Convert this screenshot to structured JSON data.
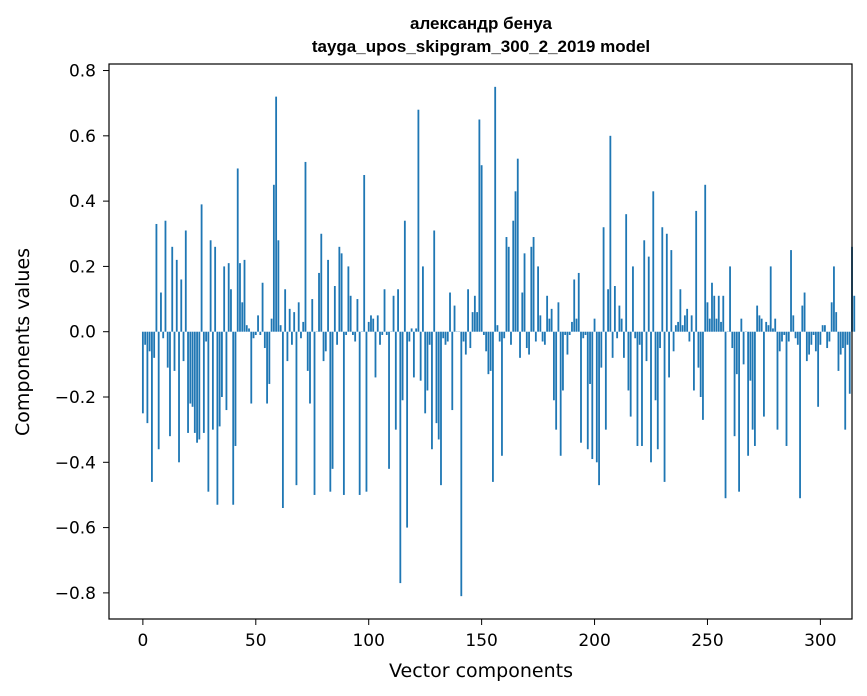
{
  "chart_data": {
    "type": "bar",
    "title": "александр бенуа",
    "subtitle": "tayga_upos_skipgram_300_2_2019 model",
    "xlabel": "Vector components",
    "ylabel": "Components values",
    "xlim": [
      -15,
      314
    ],
    "ylim": [
      -0.88,
      0.82
    ],
    "x_ticks": [
      0,
      50,
      100,
      150,
      200,
      250,
      300
    ],
    "x_tick_labels": [
      "0",
      "50",
      "100",
      "150",
      "200",
      "250",
      "300"
    ],
    "y_ticks": [
      -0.8,
      -0.6,
      -0.4,
      -0.2,
      0.0,
      0.2,
      0.4,
      0.6,
      0.8
    ],
    "y_tick_labels": [
      "−0.8",
      "−0.6",
      "−0.4",
      "−0.2",
      "0.0",
      "0.2",
      "0.4",
      "0.6",
      "0.8"
    ],
    "bar_color": "#1f77b4",
    "grid": false,
    "values": [
      -0.25,
      -0.04,
      -0.28,
      -0.06,
      -0.46,
      -0.08,
      0.33,
      -0.36,
      0.12,
      -0.02,
      0.34,
      -0.11,
      -0.32,
      0.26,
      -0.12,
      0.22,
      -0.4,
      0.16,
      -0.09,
      0.31,
      -0.31,
      -0.22,
      -0.23,
      -0.31,
      -0.34,
      -0.33,
      0.39,
      -0.31,
      -0.03,
      -0.49,
      0.28,
      -0.3,
      0.26,
      -0.53,
      -0.29,
      -0.2,
      0.2,
      -0.24,
      0.21,
      0.13,
      -0.53,
      -0.35,
      0.5,
      0.21,
      0.09,
      0.22,
      0.02,
      0.01,
      -0.22,
      -0.02,
      -0.01,
      0.05,
      -0.01,
      0.15,
      -0.05,
      -0.22,
      -0.16,
      0.04,
      0.45,
      0.72,
      0.28,
      0.02,
      -0.54,
      0.13,
      -0.09,
      0.07,
      -0.04,
      0.06,
      -0.47,
      0.09,
      -0.02,
      0.03,
      0.52,
      -0.12,
      -0.22,
      0.1,
      -0.5,
      0.0,
      0.18,
      0.3,
      -0.09,
      -0.06,
      0.22,
      -0.49,
      -0.42,
      0.14,
      -0.04,
      0.26,
      0.24,
      -0.5,
      -0.01,
      0.2,
      0.11,
      -0.01,
      -0.03,
      0.1,
      -0.5,
      0.0,
      0.48,
      -0.49,
      0.03,
      0.05,
      0.04,
      -0.14,
      0.05,
      -0.04,
      -0.01,
      0.13,
      -0.01,
      -0.42,
      0.0,
      0.11,
      -0.3,
      0.13,
      -0.77,
      -0.21,
      0.34,
      -0.6,
      -0.03,
      0.01,
      -0.14,
      0.01,
      0.68,
      -0.15,
      0.2,
      -0.25,
      -0.18,
      -0.04,
      -0.36,
      0.31,
      -0.28,
      -0.33,
      -0.47,
      -0.02,
      -0.04,
      -0.03,
      0.12,
      -0.24,
      0.08,
      0.0,
      0.0,
      -0.81,
      -0.03,
      -0.07,
      0.13,
      -0.05,
      0.06,
      0.11,
      0.06,
      0.65,
      0.51,
      -0.01,
      -0.06,
      -0.13,
      -0.12,
      -0.46,
      0.75,
      0.02,
      -0.03,
      -0.38,
      -0.02,
      0.29,
      0.26,
      -0.04,
      0.34,
      0.43,
      0.53,
      -0.08,
      0.12,
      0.24,
      -0.05,
      -0.07,
      0.26,
      0.29,
      -0.03,
      0.2,
      0.05,
      -0.03,
      -0.04,
      0.11,
      0.04,
      0.07,
      -0.21,
      -0.3,
      0.09,
      -0.38,
      -0.18,
      -0.01,
      -0.07,
      -0.01,
      0.03,
      0.16,
      0.04,
      0.18,
      -0.34,
      -0.02,
      -0.01,
      -0.36,
      -0.16,
      -0.39,
      0.04,
      -0.4,
      -0.47,
      -0.11,
      0.32,
      -0.3,
      0.13,
      0.6,
      -0.08,
      0.14,
      -0.02,
      0.08,
      0.04,
      -0.08,
      0.36,
      -0.18,
      -0.26,
      0.2,
      -0.02,
      -0.35,
      -0.04,
      -0.35,
      0.28,
      -0.09,
      0.23,
      -0.4,
      0.43,
      -0.21,
      -0.36,
      -0.05,
      0.32,
      -0.46,
      0.3,
      -0.14,
      0.25,
      -0.06,
      0.02,
      0.03,
      0.13,
      0.02,
      0.05,
      0.07,
      -0.03,
      0.05,
      -0.18,
      0.37,
      -0.11,
      -0.2,
      -0.27,
      0.45,
      0.09,
      0.04,
      0.15,
      0.11,
      0.04,
      0.11,
      0.03,
      0.11,
      -0.51,
      0.0,
      0.2,
      -0.05,
      -0.32,
      -0.13,
      -0.49,
      0.04,
      -0.1,
      0.0,
      -0.38,
      -0.15,
      -0.3,
      -0.35,
      0.08,
      0.05,
      0.04,
      -0.26,
      0.03,
      0.02,
      0.2,
      0.01,
      0.04,
      -0.3,
      -0.06,
      -0.03,
      -0.01,
      -0.35,
      -0.03,
      0.25,
      0.05,
      -0.02,
      -0.04,
      -0.51,
      0.08,
      0.12,
      -0.09,
      -0.07,
      -0.04,
      -0.01,
      -0.06,
      -0.23,
      -0.04,
      0.02,
      0.02,
      -0.05,
      -0.03,
      0.09,
      0.2,
      0.06,
      -0.12,
      -0.07,
      -0.05,
      -0.3,
      -0.04,
      -0.19,
      0.26,
      0.11
    ]
  }
}
